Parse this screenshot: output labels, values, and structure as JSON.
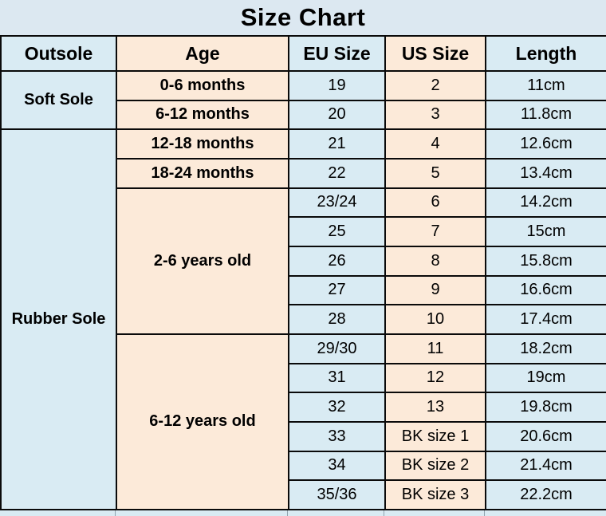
{
  "title": "Size Chart",
  "colors": {
    "cell_blue": "#d9ebf3",
    "cell_peach": "#fcead9",
    "title_band": "#dce8f1",
    "border": "#0a0a0a",
    "text": "#000000"
  },
  "table": {
    "headers": [
      "Outsole",
      "Age",
      "EU Size",
      "US Size",
      "Length"
    ],
    "sections": [
      {
        "outsole": "Soft Sole",
        "groups": [
          {
            "age": "0-6 months",
            "rows": [
              [
                "19",
                "2",
                "11cm"
              ]
            ]
          },
          {
            "age": "6-12 months",
            "rows": [
              [
                "20",
                "3",
                "11.8cm"
              ]
            ]
          }
        ]
      },
      {
        "outsole": "Rubber Sole",
        "groups": [
          {
            "age": "12-18 months",
            "rows": [
              [
                "21",
                "4",
                "12.6cm"
              ]
            ]
          },
          {
            "age": "18-24 months",
            "rows": [
              [
                "22",
                "5",
                "13.4cm"
              ]
            ]
          },
          {
            "age": "2-6 years old",
            "rows": [
              [
                "23/24",
                "6",
                "14.2cm"
              ],
              [
                "25",
                "7",
                "15cm"
              ],
              [
                "26",
                "8",
                "15.8cm"
              ],
              [
                "27",
                "9",
                "16.6cm"
              ],
              [
                "28",
                "10",
                "17.4cm"
              ]
            ]
          },
          {
            "age": "6-12 years old",
            "rows": [
              [
                "29/30",
                "11",
                "18.2cm"
              ],
              [
                "31",
                "12",
                "19cm"
              ],
              [
                "32",
                "13",
                "19.8cm"
              ],
              [
                "33",
                "BK size 1",
                "20.6cm"
              ],
              [
                "34",
                "BK size 2",
                "21.4cm"
              ],
              [
                "35/36",
                "BK size 3",
                "22.2cm"
              ]
            ]
          }
        ]
      }
    ]
  },
  "chart_data": {
    "type": "table",
    "title": "Size Chart",
    "columns": [
      "Outsole",
      "Age",
      "EU Size",
      "US Size",
      "Length"
    ],
    "rows": [
      [
        "Soft Sole",
        "0-6 months",
        "19",
        "2",
        "11cm"
      ],
      [
        "Soft Sole",
        "6-12 months",
        "20",
        "3",
        "11.8cm"
      ],
      [
        "Rubber Sole",
        "12-18 months",
        "21",
        "4",
        "12.6cm"
      ],
      [
        "Rubber Sole",
        "18-24 months",
        "22",
        "5",
        "13.4cm"
      ],
      [
        "Rubber Sole",
        "2-6 years old",
        "23/24",
        "6",
        "14.2cm"
      ],
      [
        "Rubber Sole",
        "2-6 years old",
        "25",
        "7",
        "15cm"
      ],
      [
        "Rubber Sole",
        "2-6 years old",
        "26",
        "8",
        "15.8cm"
      ],
      [
        "Rubber Sole",
        "2-6 years old",
        "27",
        "9",
        "16.6cm"
      ],
      [
        "Rubber Sole",
        "2-6 years old",
        "28",
        "10",
        "17.4cm"
      ],
      [
        "Rubber Sole",
        "6-12 years old",
        "29/30",
        "11",
        "18.2cm"
      ],
      [
        "Rubber Sole",
        "6-12 years old",
        "31",
        "12",
        "19cm"
      ],
      [
        "Rubber Sole",
        "6-12 years old",
        "32",
        "13",
        "19.8cm"
      ],
      [
        "Rubber Sole",
        "6-12 years old",
        "33",
        "BK size 1",
        "20.6cm"
      ],
      [
        "Rubber Sole",
        "6-12 years old",
        "34",
        "BK size 2",
        "21.4cm"
      ],
      [
        "Rubber Sole",
        "6-12 years old",
        "35/36",
        "BK size 3",
        "22.2cm"
      ]
    ]
  }
}
